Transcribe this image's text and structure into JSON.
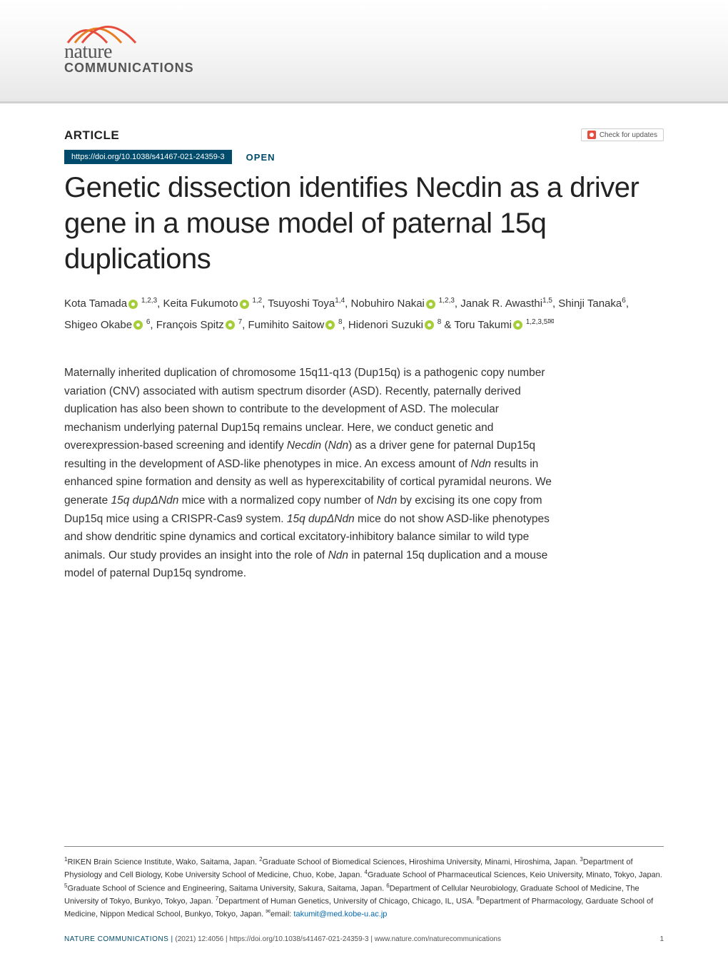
{
  "journal": {
    "name": "nature",
    "sub": "COMMUNICATIONS",
    "logo_colors": [
      "#e74c3c",
      "#e67e22"
    ]
  },
  "article_label": "ARTICLE",
  "check_updates": "Check for updates",
  "doi": "https://doi.org/10.1038/s41467-021-24359-3",
  "open_label": "OPEN",
  "title": "Genetic dissection identifies Necdin as a driver gene in a mouse model of paternal 15q duplications",
  "authors_html": "Kota Tamada<span class=\"orcid\"></span><sup> 1,2,3</sup>, Keita Fukumoto<span class=\"orcid\"></span><sup> 1,2</sup>, Tsuyoshi Toya<sup>1,4</sup>, Nobuhiro Nakai<span class=\"orcid\"></span><sup> 1,2,3</sup>, Janak R. Awasthi<sup>1,5</sup>, Shinji Tanaka<sup>6</sup>, Shigeo Okabe<span class=\"orcid\"></span><sup> 6</sup>, François Spitz<span class=\"orcid\"></span><sup> 7</sup>, Fumihito Saitow<span class=\"orcid\"></span><sup> 8</sup>, Hidenori Suzuki<span class=\"orcid\"></span><sup> 8</sup> & Toru Takumi<span class=\"orcid\"></span><sup> 1,2,3,5<span class=\"envelope\">✉</span></sup>",
  "abstract_html": "Maternally inherited duplication of chromosome 15q11-q13 (Dup15q) is a pathogenic copy number variation (CNV) associated with autism spectrum disorder (ASD). Recently, paternally derived duplication has also been shown to contribute to the development of ASD. The molecular mechanism underlying paternal Dup15q remains unclear. Here, we conduct genetic and overexpression-based screening and identify <span class=\"italic\">Necdin</span> (<span class=\"italic\">Ndn</span>) as a driver gene for paternal Dup15q resulting in the development of ASD-like phenotypes in mice. An excess amount of <span class=\"italic\">Ndn</span> results in enhanced spine formation and density as well as hyperexcitability of cortical pyramidal neurons. We generate <span class=\"italic\">15q dupΔNdn</span> mice with a normalized copy number of <span class=\"italic\">Ndn</span> by excising its one copy from Dup15q mice using a CRISPR-Cas9 system. <span class=\"italic\">15q dupΔNdn</span> mice do not show ASD-like phenotypes and show dendritic spine dynamics and cortical excitatory-inhibitory balance similar to wild type animals. Our study provides an insight into the role of <span class=\"italic\">Ndn</span> in paternal 15q duplication and a mouse model of paternal Dup15q syndrome.",
  "affiliations_html": "<sup>1</sup>RIKEN Brain Science Institute, Wako, Saitama, Japan. <sup>2</sup>Graduate School of Biomedical Sciences, Hiroshima University, Minami, Hiroshima, Japan. <sup>3</sup>Department of Physiology and Cell Biology, Kobe University School of Medicine, Chuo, Kobe, Japan. <sup>4</sup>Graduate School of Pharmaceutical Sciences, Keio University, Minato, Tokyo, Japan. <sup>5</sup>Graduate School of Science and Engineering, Saitama University, Sakura, Saitama, Japan. <sup>6</sup>Department of Cellular Neurobiology, Graduate School of Medicine, The University of Tokyo, Bunkyo, Tokyo, Japan. <sup>7</sup>Department of Human Genetics, University of Chicago, Chicago, IL, USA. <sup>8</sup>Department of Pharmacology, Garduate School of Medicine, Nippon Medical School, Bunkyo, Tokyo, Japan. <sup>✉</sup>email: <span class=\"email-link\">takumit@med.kobe-u.ac.jp</span>",
  "footer": {
    "left": "NATURE COMMUNICATIONS |",
    "center": "(2021) 12:4056 | https://doi.org/10.1038/s41467-021-24359-3 | www.nature.com/naturecommunications",
    "page": "1"
  },
  "colors": {
    "brand_dark": "#004b6b",
    "text": "#333333",
    "link": "#0066aa",
    "orcid": "#a6ce39",
    "logo_red": "#e74c3c",
    "logo_orange": "#e67e22"
  },
  "typography": {
    "title_fontsize": 40,
    "title_weight": 300,
    "abstract_fontsize": 15.5,
    "authors_fontsize": 15,
    "affiliations_fontsize": 11,
    "footer_fontsize": 10
  }
}
